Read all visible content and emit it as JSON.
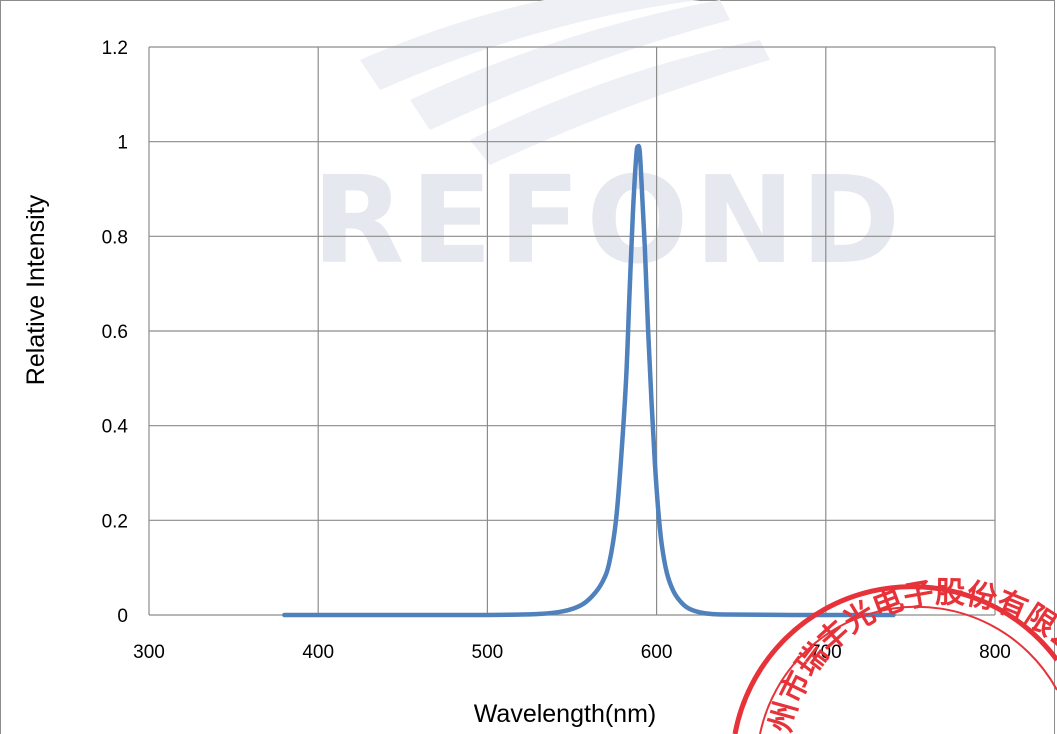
{
  "chart_data": {
    "type": "line",
    "title": "",
    "xlabel": "Wavelength(nm)",
    "ylabel": "Relative Intensity",
    "xlim": [
      300,
      800
    ],
    "ylim": [
      0,
      1.2
    ],
    "x_ticks": [
      300,
      400,
      500,
      600,
      700,
      800
    ],
    "y_ticks": [
      0,
      0.2,
      0.4,
      0.6,
      0.8,
      1,
      1.2
    ],
    "x_tick_labels": [
      "300",
      "400",
      "500",
      "600",
      "700",
      "800"
    ],
    "y_tick_labels": [
      "0",
      "0.2",
      "0.4",
      "0.6",
      "0.8",
      "1",
      "1.2"
    ],
    "grid": true,
    "legend": "none",
    "series": [
      {
        "color": "#4f81bd",
        "x": [
          380,
          450,
          500,
          530,
          545,
          555,
          562,
          568,
          572,
          576,
          579,
          582,
          584,
          586,
          588,
          589,
          590,
          591,
          593,
          595,
          597,
          599,
          601,
          603,
          606,
          610,
          615,
          620,
          628,
          640,
          680,
          740
        ],
        "y": [
          0,
          0,
          0,
          0.002,
          0.008,
          0.02,
          0.04,
          0.07,
          0.11,
          0.2,
          0.33,
          0.5,
          0.68,
          0.85,
          0.97,
          0.99,
          0.98,
          0.92,
          0.78,
          0.6,
          0.45,
          0.32,
          0.22,
          0.15,
          0.09,
          0.05,
          0.025,
          0.012,
          0.004,
          0.001,
          0,
          0
        ]
      }
    ]
  },
  "watermark": {
    "text": "REFOND",
    "color": "#e6e8ef"
  },
  "stamp": {
    "text": "州市瑞丰光电子股份有限公",
    "color": "#e8323a"
  }
}
